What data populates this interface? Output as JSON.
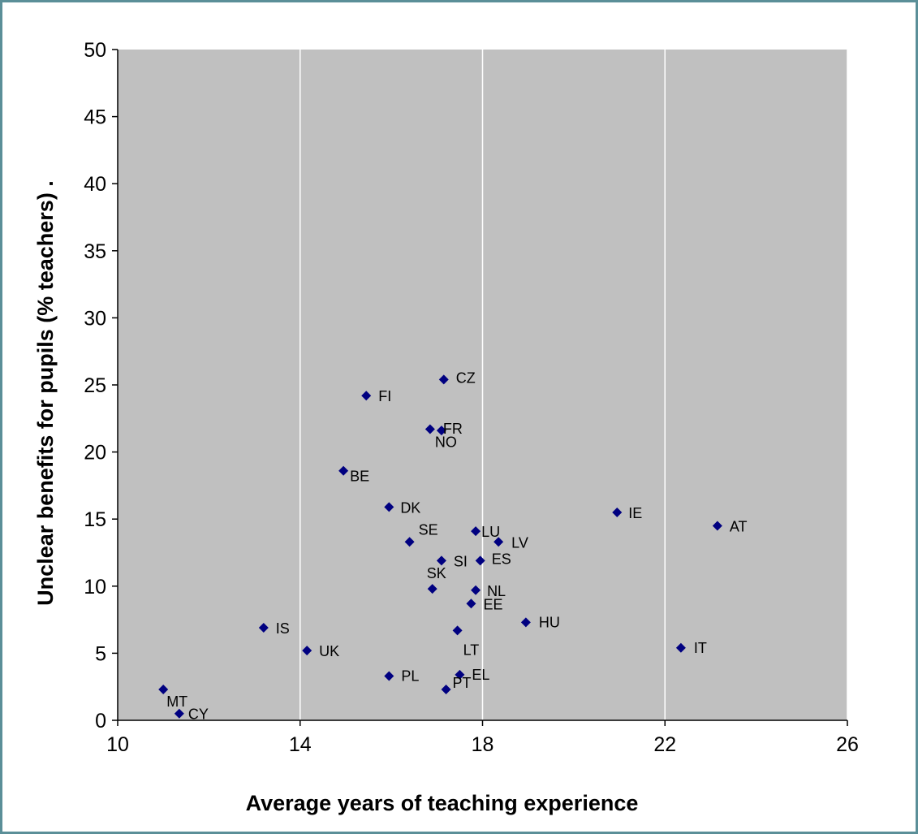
{
  "chart_data": {
    "type": "scatter",
    "title": "",
    "xlabel": "Average years of teaching experience",
    "ylabel": "Unclear benefits for pupils (% teachers)  .",
    "xlim": [
      10,
      26
    ],
    "ylim": [
      0,
      50
    ],
    "x_ticks": [
      10,
      14,
      18,
      22,
      26
    ],
    "y_ticks": [
      0,
      5,
      10,
      15,
      20,
      25,
      30,
      35,
      40,
      45,
      50
    ],
    "x_tick_labels": [
      "10",
      "14",
      "18",
      "22",
      "26"
    ],
    "y_tick_labels": [
      "0",
      "5",
      "10",
      "15",
      "20",
      "25",
      "30",
      "35",
      "40",
      "45",
      "50"
    ],
    "grid": "vertical only",
    "plot_background": "#c0c0c0",
    "marker": "diamond",
    "marker_color": "#000080",
    "points": [
      {
        "label": "CZ",
        "x": 17.15,
        "y": 25.4
      },
      {
        "label": "FI",
        "x": 15.45,
        "y": 24.2
      },
      {
        "label": "FR",
        "x": 17.1,
        "y": 21.6
      },
      {
        "label": "NO",
        "x": 16.85,
        "y": 21.7
      },
      {
        "label": "BE",
        "x": 14.95,
        "y": 18.6
      },
      {
        "label": "DK",
        "x": 15.95,
        "y": 15.9
      },
      {
        "label": "IE",
        "x": 20.95,
        "y": 15.5
      },
      {
        "label": "AT",
        "x": 23.15,
        "y": 14.5
      },
      {
        "label": "LU",
        "x": 17.85,
        "y": 14.1
      },
      {
        "label": "LV",
        "x": 18.35,
        "y": 13.3
      },
      {
        "label": "SE",
        "x": 16.4,
        "y": 13.3
      },
      {
        "label": "SI",
        "x": 17.1,
        "y": 11.9
      },
      {
        "label": "ES",
        "x": 17.95,
        "y": 11.9
      },
      {
        "label": "SK",
        "x": 16.9,
        "y": 9.8
      },
      {
        "label": "NL",
        "x": 17.85,
        "y": 9.7
      },
      {
        "label": "EE",
        "x": 17.75,
        "y": 8.7
      },
      {
        "label": "HU",
        "x": 18.95,
        "y": 7.3
      },
      {
        "label": "IS",
        "x": 13.2,
        "y": 6.9
      },
      {
        "label": "LT",
        "x": 17.45,
        "y": 6.7
      },
      {
        "label": "UK",
        "x": 14.15,
        "y": 5.2
      },
      {
        "label": "IT",
        "x": 22.35,
        "y": 5.4
      },
      {
        "label": "PL",
        "x": 15.95,
        "y": 3.3
      },
      {
        "label": "EL",
        "x": 17.5,
        "y": 3.4
      },
      {
        "label": "PT",
        "x": 17.2,
        "y": 2.3
      },
      {
        "label": "MT",
        "x": 11.0,
        "y": 2.3
      },
      {
        "label": "CY",
        "x": 11.35,
        "y": 0.5
      }
    ]
  }
}
